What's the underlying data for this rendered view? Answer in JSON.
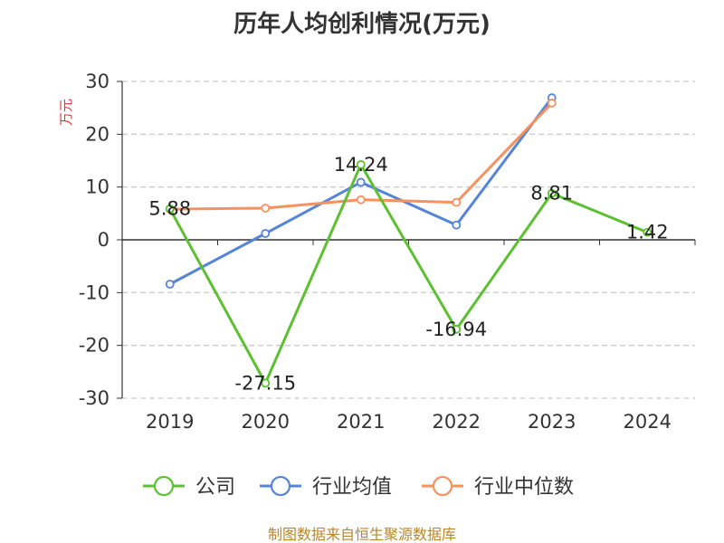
{
  "source_text": "制图数据来自恒生聚源数据库",
  "chart_data": {
    "type": "line",
    "title": "历年人均创利情况(万元)",
    "ylabel": "万元",
    "xlabel": "",
    "categories": [
      "2019",
      "2020",
      "2021",
      "2022",
      "2023",
      "2024"
    ],
    "ylim": [
      -30,
      30
    ],
    "yticks": [
      30,
      20,
      10,
      0,
      -10,
      -20,
      -30
    ],
    "grid": true,
    "legend_position": "bottom",
    "series": [
      {
        "name": "公司",
        "color": "#5cc130",
        "values": [
          5.88,
          -27.15,
          14.24,
          -16.94,
          8.81,
          1.42
        ],
        "labels": [
          "5.88",
          "-27.15",
          "14.24",
          "-16.94",
          "8.81",
          "1.42"
        ]
      },
      {
        "name": "行业均值",
        "color": "#5584d8",
        "values": [
          -8.4,
          1.2,
          10.9,
          2.8,
          26.9,
          null
        ]
      },
      {
        "name": "行业中位数",
        "color": "#f7915e",
        "values": [
          5.8,
          6.0,
          7.6,
          7.1,
          25.9,
          null
        ]
      }
    ],
    "ylabel_color": "#e0353a",
    "source_color": "#b8862b"
  }
}
